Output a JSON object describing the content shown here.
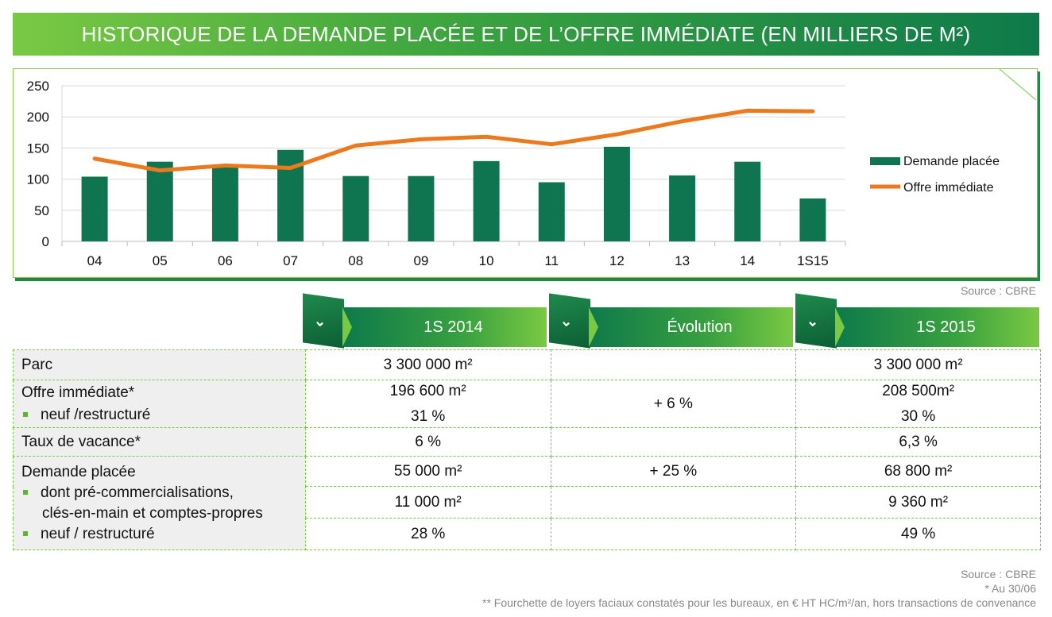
{
  "title": "HISTORIQUE DE LA DEMANDE PLACÉE ET DE L’OFFRE IMMÉDIATE (EN MILLIERS DE M²)",
  "colors": {
    "bar": "#0e7550",
    "line": "#ec7a1c",
    "accent": "#7ac943"
  },
  "chart_data": {
    "type": "bar",
    "categories": [
      "04",
      "05",
      "06",
      "07",
      "08",
      "09",
      "10",
      "11",
      "12",
      "13",
      "14",
      "1S15"
    ],
    "ylim": [
      0,
      250
    ],
    "yticks": [
      "0",
      "50",
      "100",
      "150",
      "200",
      "250"
    ],
    "grid": true,
    "legend_position": "right",
    "series": [
      {
        "name": "Demande placée",
        "kind": "bar",
        "values": [
          104,
          128,
          122,
          147,
          105,
          105,
          129,
          95,
          152,
          106,
          128,
          69
        ]
      },
      {
        "name": "Offre immédiate",
        "kind": "line",
        "values": [
          133,
          114,
          122,
          118,
          154,
          164,
          168,
          156,
          172,
          193,
          210,
          209
        ]
      }
    ]
  },
  "chart_source": "Source : CBRE",
  "table": {
    "headers": [
      "1S 2014",
      "Évolution",
      "1S 2015"
    ],
    "rows": {
      "parc": {
        "label": "Parc",
        "s2014": "3 300 000 m²",
        "evol": "",
        "s2015": "3 300 000 m²"
      },
      "offre": {
        "label": "Offre immédiate*",
        "s2014": "196 600 m²",
        "evol": "+  6 %",
        "s2015": "208 500m²"
      },
      "offre_neuf": {
        "label": "neuf /restructuré",
        "s2014": "31 %",
        "s2015": "30 %"
      },
      "vacance": {
        "label": "Taux de vacance*",
        "s2014": "6 %",
        "evol": "",
        "s2015": "6,3 %"
      },
      "demande": {
        "label": "Demande placée",
        "s2014": "55 000 m²",
        "evol": "+ 25 %",
        "s2015": "68 800 m²"
      },
      "precom": {
        "label_1": "dont pré-commercialisations,",
        "label_2": "clés-en-main  et comptes-propres",
        "s2014": "11 000 m²",
        "evol": "",
        "s2015": "9 360 m²"
      },
      "demande_neuf": {
        "label": "neuf / restructuré",
        "s2014": "28 %",
        "evol": "",
        "s2015": "49 %"
      }
    }
  },
  "footnotes": {
    "source": "Source : CBRE",
    "note1": "* Au 30/06",
    "note2": "** Fourchette  de loyers faciaux  constatés pour les bureaux,  en € HT HC/m²/an,  hors transactions  de convenance"
  }
}
